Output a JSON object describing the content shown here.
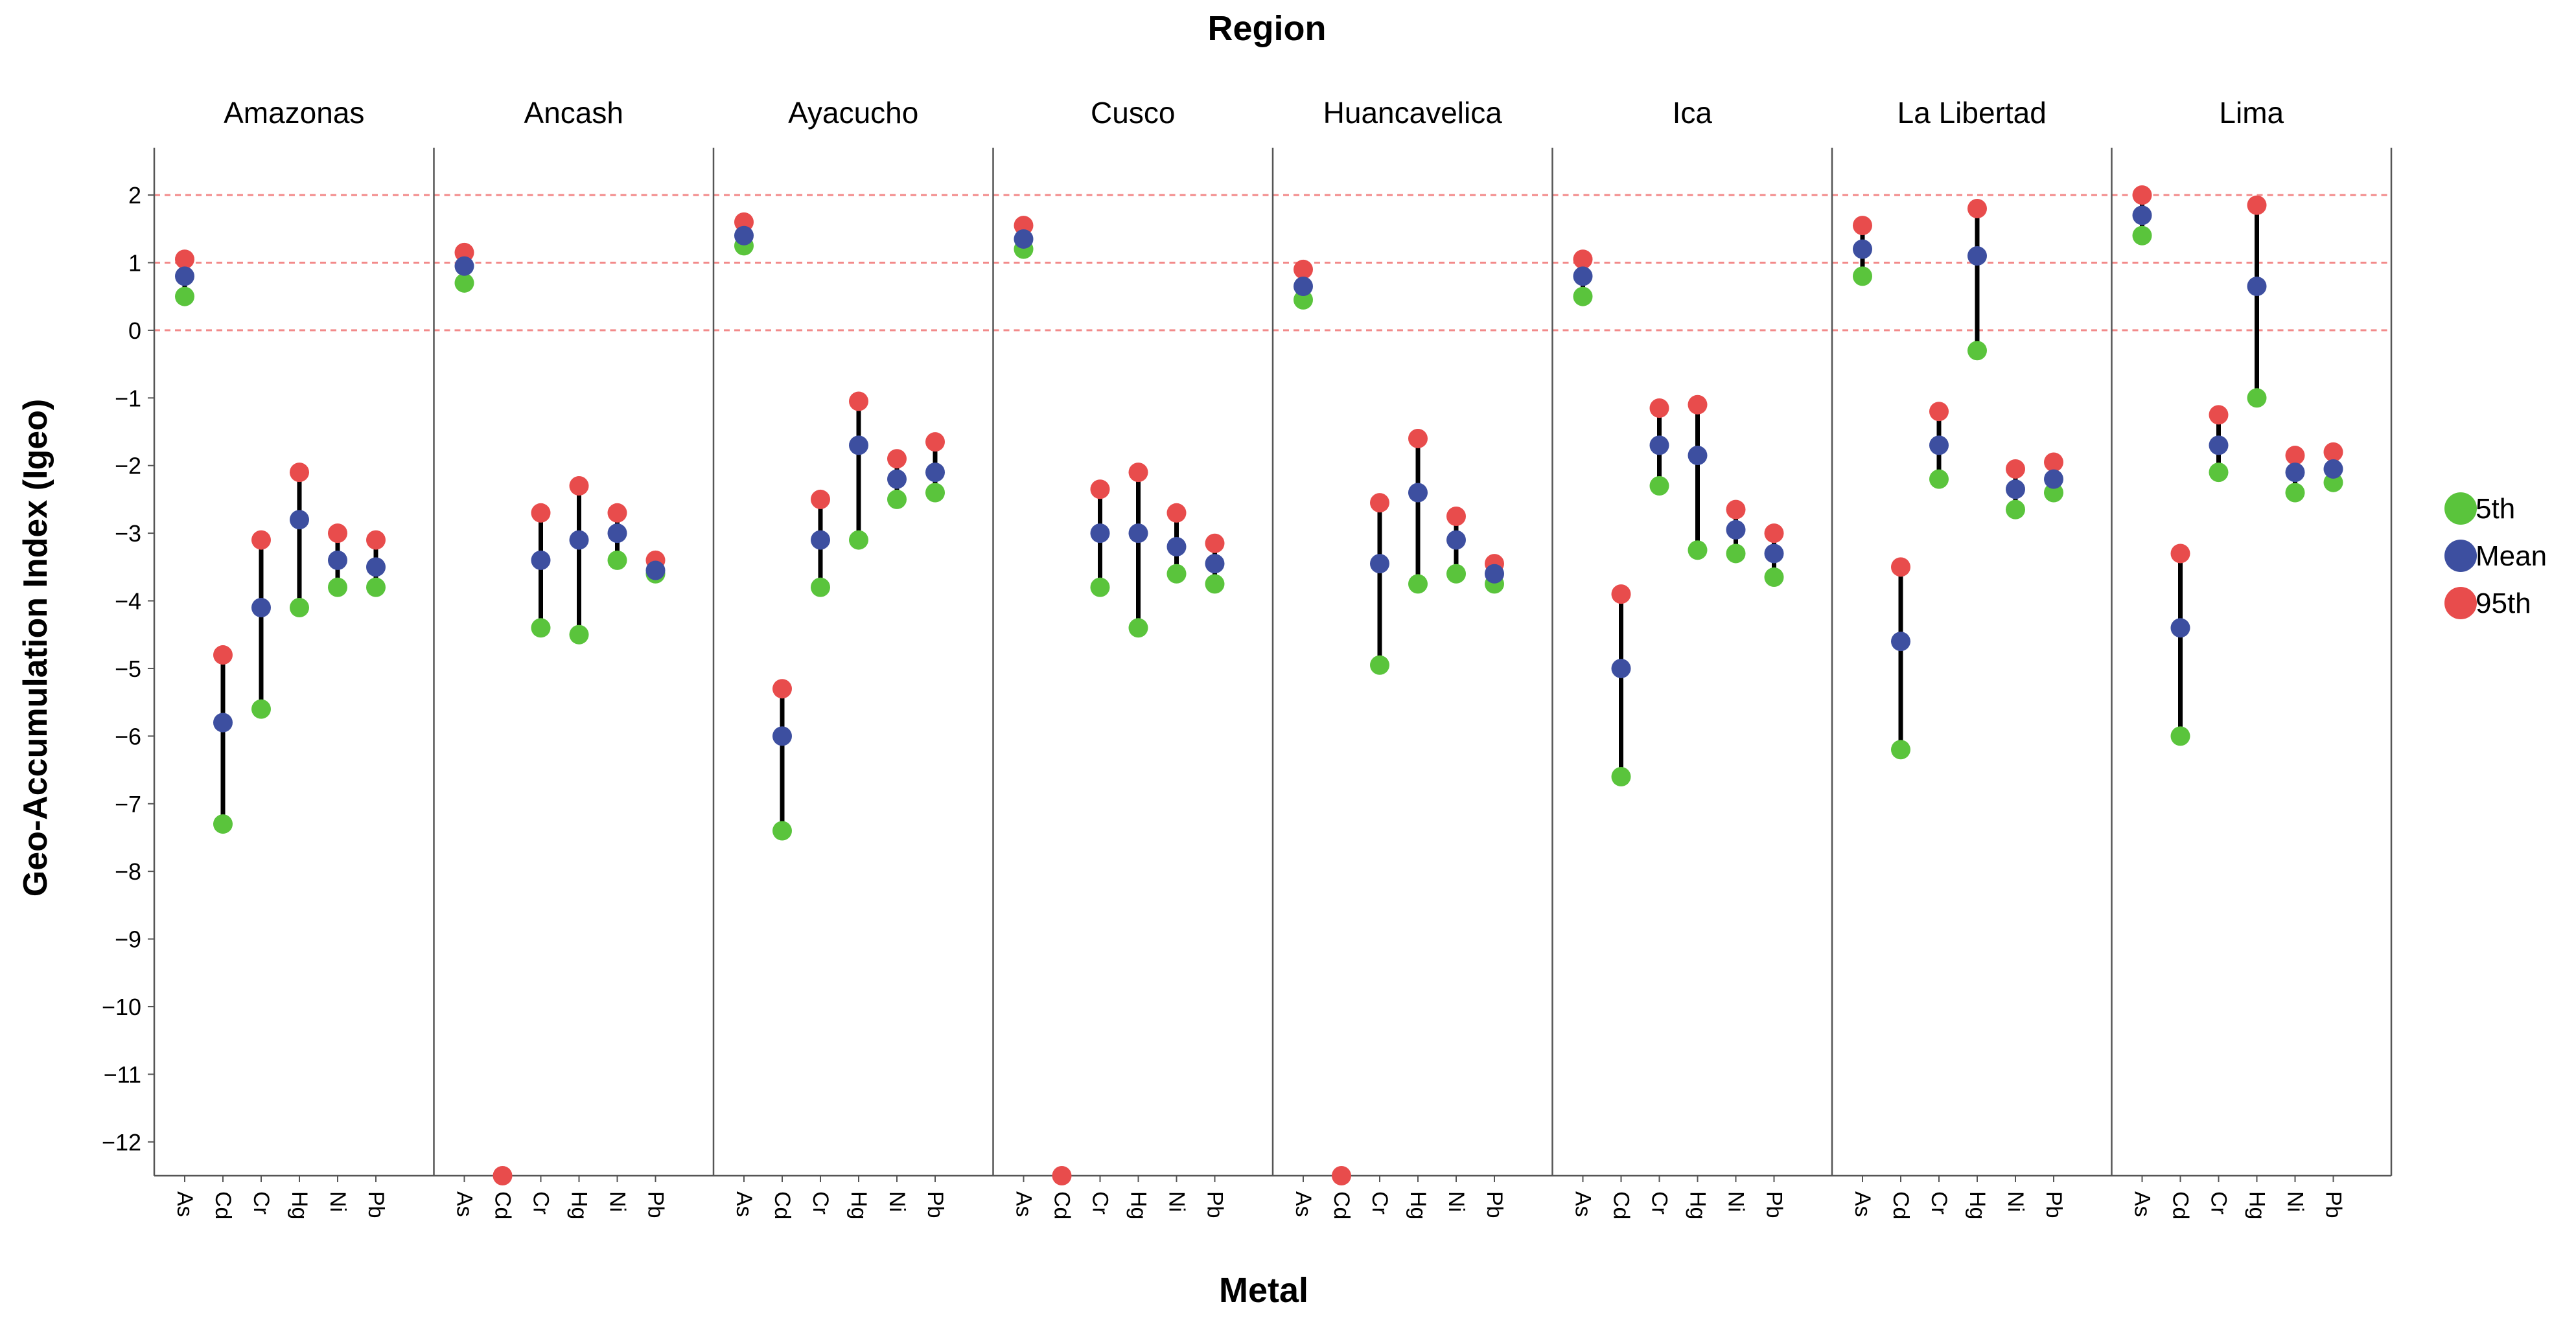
{
  "chart_data": {
    "type": "scatter",
    "title": "Region",
    "xlabel": "Metal",
    "ylabel": "Geo-Accumulation Index (Igeo)",
    "ylim": [
      -12.5,
      2.7
    ],
    "yticks": [
      2,
      1,
      0,
      -1,
      -2,
      -3,
      -4,
      -5,
      -6,
      -7,
      -8,
      -9,
      -10,
      -11,
      -12
    ],
    "reference_lines": [
      2,
      1,
      0
    ],
    "categories": [
      "As",
      "Cd",
      "Cr",
      "Hg",
      "Ni",
      "Pb"
    ],
    "legend": [
      {
        "name": "5th",
        "color": "#5ac43c"
      },
      {
        "name": "Mean",
        "color": "#3d4fa0"
      },
      {
        "name": "95th",
        "color": "#e84c4c"
      }
    ],
    "panels": [
      {
        "region": "Amazonas",
        "p5": [
          0.5,
          -7.3,
          -5.6,
          -4.1,
          -3.8,
          -3.8
        ],
        "mean": [
          0.8,
          -5.8,
          -4.1,
          -2.8,
          -3.4,
          -3.5
        ],
        "p95": [
          1.05,
          -4.8,
          -3.1,
          -2.1,
          -3.0,
          -3.1
        ]
      },
      {
        "region": "Ancash",
        "p5": [
          0.7,
          null,
          -4.4,
          -4.5,
          -3.4,
          -3.6
        ],
        "mean": [
          0.95,
          null,
          -3.4,
          -3.1,
          -3.0,
          -3.55
        ],
        "p95": [
          1.15,
          -12.5,
          -2.7,
          -2.3,
          -2.7,
          -3.4
        ]
      },
      {
        "region": "Ayacucho",
        "p5": [
          1.25,
          -7.4,
          -3.8,
          -3.1,
          -2.5,
          -2.4
        ],
        "mean": [
          1.4,
          -6.0,
          -3.1,
          -1.7,
          -2.2,
          -2.1
        ],
        "p95": [
          1.6,
          -5.3,
          -2.5,
          -1.05,
          -1.9,
          -1.65
        ]
      },
      {
        "region": "Cusco",
        "p5": [
          1.2,
          null,
          -3.8,
          -4.4,
          -3.6,
          -3.75
        ],
        "mean": [
          1.35,
          null,
          -3.0,
          -3.0,
          -3.2,
          -3.45
        ],
        "p95": [
          1.55,
          -12.5,
          -2.35,
          -2.1,
          -2.7,
          -3.15
        ]
      },
      {
        "region": "Huancavelica",
        "p5": [
          0.45,
          null,
          -4.95,
          -3.75,
          -3.6,
          -3.75
        ],
        "mean": [
          0.65,
          null,
          -3.45,
          -2.4,
          -3.1,
          -3.6
        ],
        "p95": [
          0.9,
          -12.5,
          -2.55,
          -1.6,
          -2.75,
          -3.45
        ]
      },
      {
        "region": "Ica",
        "p5": [
          0.5,
          -6.6,
          -2.3,
          -3.25,
          -3.3,
          -3.65
        ],
        "mean": [
          0.8,
          -5.0,
          -1.7,
          -1.85,
          -2.95,
          -3.3
        ],
        "p95": [
          1.05,
          -3.9,
          -1.15,
          -1.1,
          -2.65,
          -3.0
        ]
      },
      {
        "region": "La Libertad",
        "p5": [
          0.8,
          -6.2,
          -2.2,
          -0.3,
          -2.65,
          -2.4
        ],
        "mean": [
          1.2,
          -4.6,
          -1.7,
          1.1,
          -2.35,
          -2.2
        ],
        "p95": [
          1.55,
          -3.5,
          -1.2,
          1.8,
          -2.05,
          -1.95
        ]
      },
      {
        "region": "Lima",
        "p5": [
          1.4,
          -6.0,
          -2.1,
          -1.0,
          -2.4,
          -2.25
        ],
        "mean": [
          1.7,
          -4.4,
          -1.7,
          0.65,
          -2.1,
          -2.05
        ],
        "p95": [
          2.0,
          -3.3,
          -1.25,
          1.85,
          -1.85,
          -1.8
        ]
      }
    ]
  }
}
